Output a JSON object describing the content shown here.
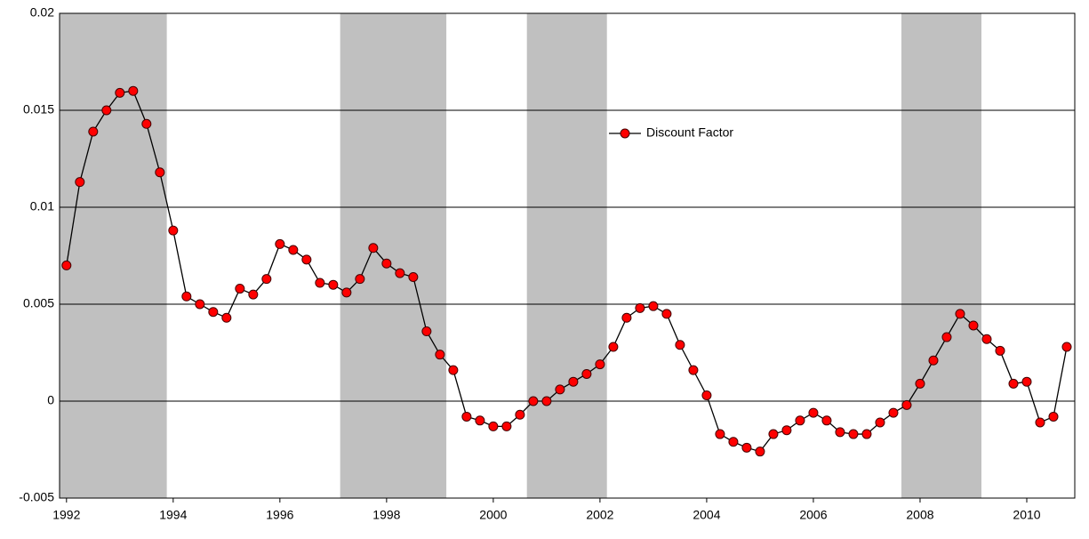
{
  "chart_data": {
    "type": "line",
    "x": [
      1992,
      1992.25,
      1992.5,
      1992.75,
      1993,
      1993.25,
      1993.5,
      1993.75,
      1994,
      1994.25,
      1994.5,
      1994.75,
      1995,
      1995.25,
      1995.5,
      1995.75,
      1996,
      1996.25,
      1996.5,
      1996.75,
      1997,
      1997.25,
      1997.5,
      1997.75,
      1998,
      1998.25,
      1998.5,
      1998.75,
      1999,
      1999.25,
      1999.5,
      1999.75,
      2000,
      2000.25,
      2000.5,
      2000.75,
      2001,
      2001.25,
      2001.5,
      2001.75,
      2002,
      2002.25,
      2002.5,
      2002.75,
      2003,
      2003.25,
      2003.5,
      2003.75,
      2004,
      2004.25,
      2004.5,
      2004.75,
      2005,
      2005.25,
      2005.5,
      2005.75,
      2006,
      2006.25,
      2006.5,
      2006.75,
      2007,
      2007.25,
      2007.5,
      2007.75,
      2008,
      2008.25,
      2008.5,
      2008.75,
      2009,
      2009.25,
      2009.5,
      2009.75,
      2010,
      2010.25,
      2010.5,
      2010.75
    ],
    "series": [
      {
        "name": "Discount Factor",
        "color": "#ff0000",
        "line_color": "#000000",
        "values": [
          0.007,
          0.0113,
          0.0139,
          0.015,
          0.0159,
          0.016,
          0.0143,
          0.0118,
          0.0088,
          0.0054,
          0.005,
          0.0046,
          0.0043,
          0.0058,
          0.0055,
          0.0063,
          0.0081,
          0.0078,
          0.0073,
          0.0061,
          0.006,
          0.0056,
          0.0063,
          0.0079,
          0.0071,
          0.0066,
          0.0064,
          0.0036,
          0.0024,
          0.0016,
          -0.0008,
          -0.001,
          -0.0013,
          -0.0013,
          -0.0007,
          0.0,
          0.0,
          0.0006,
          0.001,
          0.0014,
          0.0019,
          0.0028,
          0.0043,
          0.0048,
          0.0049,
          0.0045,
          0.0029,
          0.0016,
          0.0003,
          -0.0017,
          -0.0021,
          -0.0024,
          -0.0026,
          -0.0017,
          -0.0015,
          -0.001,
          -0.0006,
          -0.001,
          -0.0016,
          -0.0017,
          -0.0017,
          -0.0011,
          -0.0006,
          -0.0002,
          0.0009,
          0.0021,
          0.0033,
          0.0045,
          0.0039,
          0.0032,
          0.0026,
          0.0009,
          0.001,
          -0.0011,
          -0.0008,
          0.0028
        ]
      }
    ],
    "shaded_ranges": [
      [
        1991.87,
        1993.88
      ],
      [
        1997.13,
        1999.12
      ],
      [
        2000.63,
        2002.13
      ],
      [
        2007.65,
        2009.15
      ]
    ],
    "shade_color": "#c0c0c0",
    "xlim": [
      1991.87,
      2010.9
    ],
    "xticks": [
      1992,
      1994,
      1996,
      1998,
      2000,
      2002,
      2004,
      2006,
      2008,
      2010
    ],
    "ylim": [
      -0.005,
      0.02
    ],
    "yticks": [
      -0.005,
      0,
      0.005,
      0.01,
      0.015,
      0.02
    ],
    "grid": true
  }
}
